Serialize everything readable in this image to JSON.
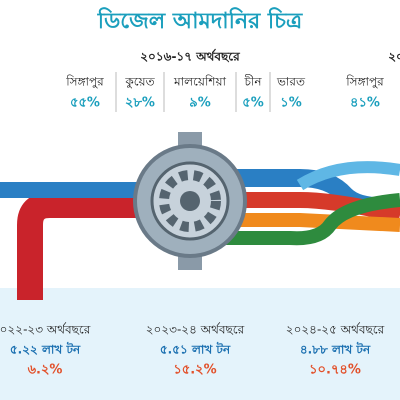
{
  "title": "ডিজেল আমদানির চিত্র",
  "panels": [
    {
      "year": "২০১৬-১৭ অর্থবছরে",
      "items": [
        {
          "country": "সিঙ্গাপুর",
          "share": "৫৫%"
        },
        {
          "country": "কুয়েত",
          "share": "২৮%"
        },
        {
          "country": "মালয়েশিয়া",
          "share": "৯%"
        },
        {
          "country": "চীন",
          "share": "৫%"
        },
        {
          "country": "ভারত",
          "share": "১%"
        }
      ]
    },
    {
      "year": "২০",
      "items": [
        {
          "country": "সিঙ্গাপুর",
          "share": "৪১%"
        }
      ]
    }
  ],
  "periods": [
    {
      "year": "০২২-২৩ অর্থবছরে",
      "volume": "৫.২২ লাখ টন",
      "change": "৬.২%"
    },
    {
      "year": "২০২৩-২৪ অর্থবছরে",
      "volume": "৫.৫১ লাখ টন",
      "change": "১৫.২%"
    },
    {
      "year": "২০২৪-২৫ অর্থবছরে",
      "volume": "৪.৮৮ লাখ টন",
      "change": "১০.৭৪%"
    }
  ]
}
